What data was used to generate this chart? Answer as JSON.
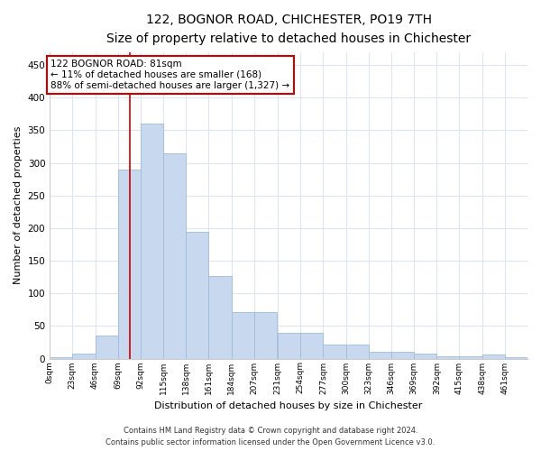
{
  "title": "122, BOGNOR ROAD, CHICHESTER, PO19 7TH",
  "subtitle": "Size of property relative to detached houses in Chichester",
  "xlabel": "Distribution of detached houses by size in Chichester",
  "ylabel": "Number of detached properties",
  "bar_color": "#c8d9ef",
  "bar_edge_color": "#a0bcd8",
  "grid_color": "#dde6f0",
  "bins": [
    0,
    23,
    46,
    69,
    92,
    115,
    138,
    161,
    184,
    207,
    231,
    254,
    277,
    300,
    323,
    346,
    369,
    392,
    415,
    438,
    461
  ],
  "counts": [
    2,
    7,
    35,
    290,
    360,
    315,
    195,
    127,
    71,
    71,
    40,
    40,
    21,
    21,
    11,
    11,
    8,
    4,
    4,
    6,
    2
  ],
  "tick_labels": [
    "0sqm",
    "23sqm",
    "46sqm",
    "69sqm",
    "92sqm",
    "115sqm",
    "138sqm",
    "161sqm",
    "184sqm",
    "207sqm",
    "231sqm",
    "254sqm",
    "277sqm",
    "300sqm",
    "323sqm",
    "346sqm",
    "369sqm",
    "392sqm",
    "415sqm",
    "438sqm",
    "461sqm"
  ],
  "property_value": 81,
  "annotation_line1": "122 BOGNOR ROAD: 81sqm",
  "annotation_line2": "← 11% of detached houses are smaller (168)",
  "annotation_line3": "88% of semi-detached houses are larger (1,327) →",
  "annotation_box_color": "#ffffff",
  "annotation_box_edge": "#cc0000",
  "vline_color": "#cc0000",
  "ylim": [
    0,
    470
  ],
  "yticks": [
    0,
    50,
    100,
    150,
    200,
    250,
    300,
    350,
    400,
    450
  ],
  "footnote1": "Contains HM Land Registry data © Crown copyright and database right 2024.",
  "footnote2": "Contains public sector information licensed under the Open Government Licence v3.0."
}
